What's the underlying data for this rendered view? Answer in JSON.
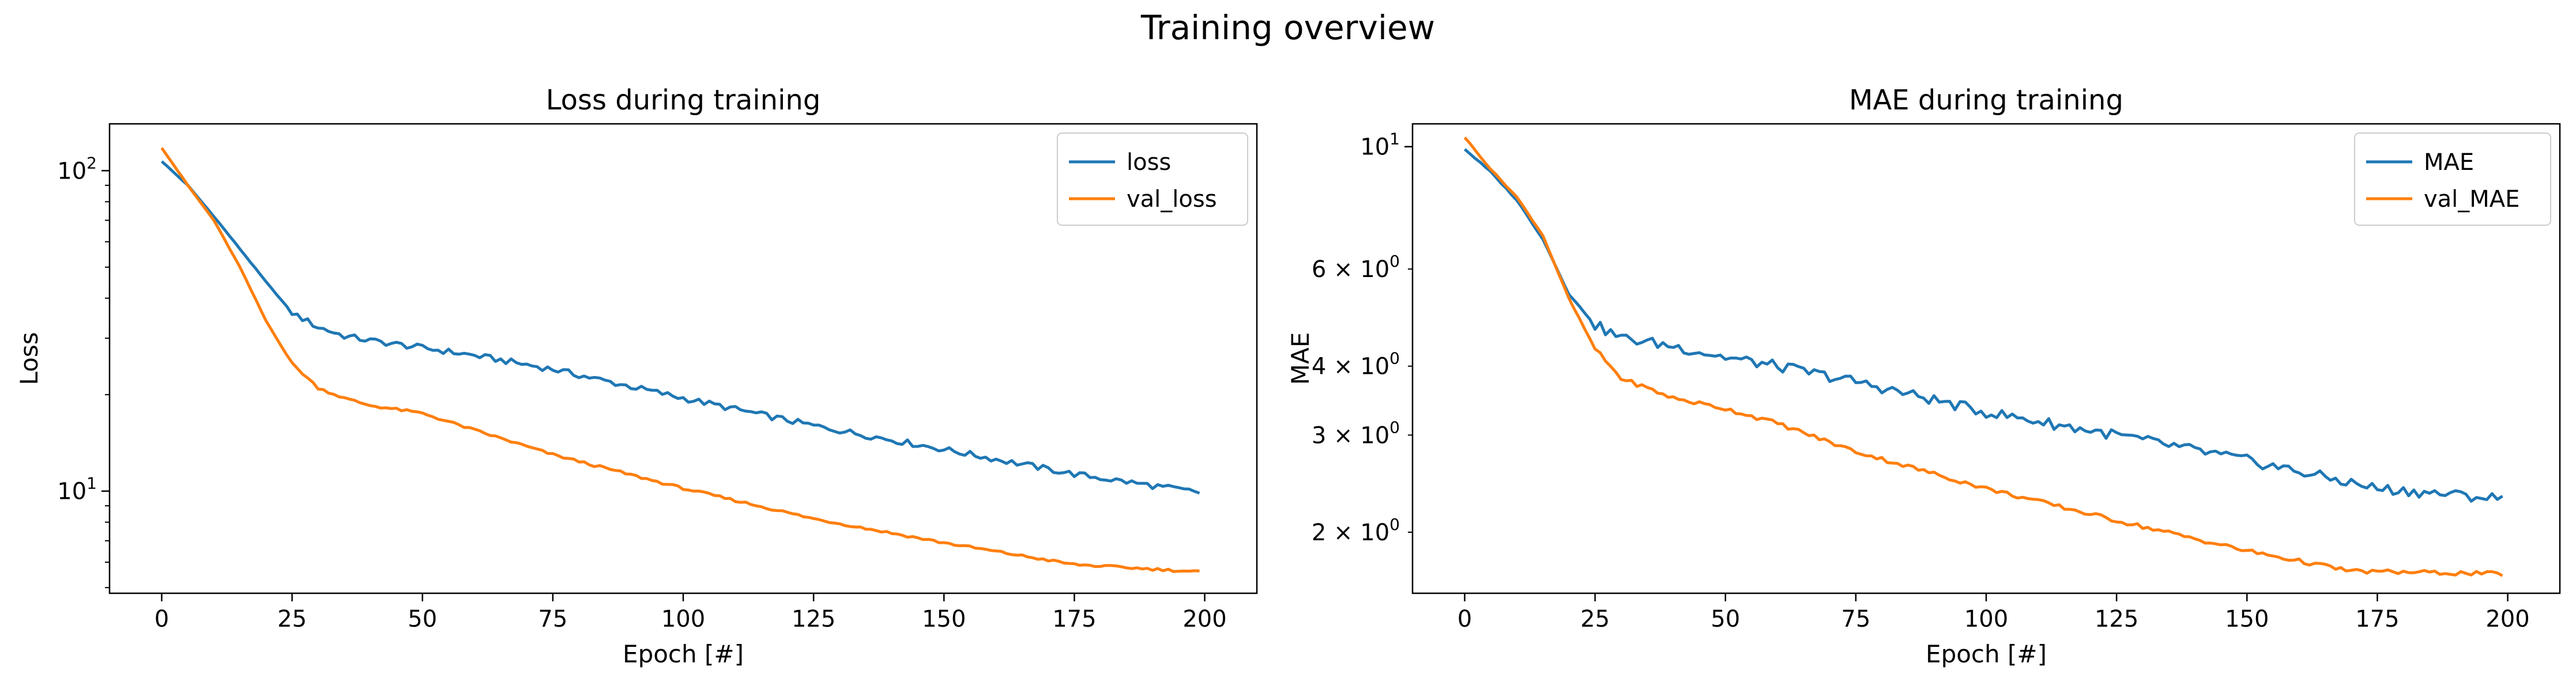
{
  "figure": {
    "suptitle": "Training overview"
  },
  "chart_data": [
    {
      "type": "line",
      "title": "Loss during training",
      "xlabel": "Epoch [#]",
      "ylabel": "Loss",
      "yscale": "log",
      "xlim": [
        -10,
        210
      ],
      "ylim": [
        4.8,
        140
      ],
      "x_ticks": [
        0,
        25,
        50,
        75,
        100,
        125,
        150,
        175,
        200
      ],
      "y_major_ticks": [
        {
          "value": 10,
          "label": "10",
          "exp": "1"
        },
        {
          "value": 100,
          "label": "10",
          "exp": "2"
        }
      ],
      "y_minor_ticks": [
        5,
        6,
        7,
        8,
        9,
        20,
        30,
        40,
        50,
        60,
        70,
        80,
        90
      ],
      "legend": "top-right",
      "grid": false,
      "series": [
        {
          "name": "loss",
          "color": "#1f77b4",
          "x": [
            0,
            5,
            10,
            15,
            20,
            25,
            30,
            35,
            40,
            50,
            60,
            75,
            100,
            125,
            150,
            175,
            199
          ],
          "y": [
            107,
            90,
            72,
            57,
            45,
            36,
            32.5,
            30.5,
            29.5,
            28,
            26.5,
            24,
            19.5,
            16,
            13.5,
            11.3,
            9.9
          ]
        },
        {
          "name": "val_loss",
          "color": "#ff7f0e",
          "x": [
            0,
            5,
            10,
            15,
            20,
            25,
            30,
            35,
            40,
            50,
            60,
            75,
            100,
            125,
            150,
            175,
            199
          ],
          "y": [
            118,
            90,
            70,
            50,
            34,
            25,
            21,
            19.5,
            18.5,
            17.5,
            15.5,
            13,
            10.2,
            8.2,
            6.9,
            5.9,
            5.6
          ]
        }
      ]
    },
    {
      "type": "line",
      "title": "MAE during training",
      "xlabel": "Epoch [#]",
      "ylabel": "MAE",
      "yscale": "log",
      "xlim": [
        -10,
        210
      ],
      "ylim": [
        1.55,
        11
      ],
      "x_ticks": [
        0,
        25,
        50,
        75,
        100,
        125,
        150,
        175,
        200
      ],
      "y_major_ticks": [
        {
          "value": 10,
          "label": "10",
          "exp": "1"
        }
      ],
      "y_minor_ticks": [
        {
          "value": 2,
          "label": "2 × 10",
          "exp": "0"
        },
        {
          "value": 3,
          "label": "3 × 10",
          "exp": "0"
        },
        {
          "value": 4,
          "label": "4 × 10",
          "exp": "0"
        },
        {
          "value": 6,
          "label": "6 × 10",
          "exp": "0"
        }
      ],
      "legend": "top-right",
      "grid": false,
      "series": [
        {
          "name": "MAE",
          "color": "#1f77b4",
          "x": [
            0,
            5,
            10,
            15,
            20,
            25,
            30,
            40,
            50,
            60,
            75,
            100,
            125,
            150,
            175,
            199
          ],
          "y": [
            9.9,
            9.0,
            8.0,
            6.8,
            5.4,
            4.75,
            4.5,
            4.35,
            4.15,
            4.0,
            3.75,
            3.3,
            3.0,
            2.7,
            2.4,
            2.3
          ]
        },
        {
          "name": "val_MAE",
          "color": "#ff7f0e",
          "x": [
            0,
            5,
            10,
            15,
            20,
            25,
            30,
            35,
            40,
            50,
            60,
            75,
            100,
            125,
            150,
            170,
            199
          ],
          "y": [
            10.4,
            9.1,
            8.1,
            6.9,
            5.3,
            4.3,
            3.8,
            3.65,
            3.5,
            3.35,
            3.15,
            2.8,
            2.4,
            2.1,
            1.85,
            1.7,
            1.68
          ]
        }
      ]
    }
  ]
}
